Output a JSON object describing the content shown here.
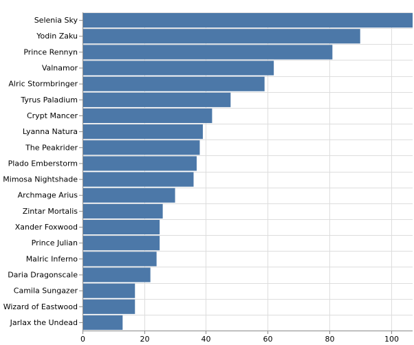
{
  "chart_data": {
    "type": "bar",
    "orientation": "horizontal",
    "title": "",
    "xlabel": "",
    "ylabel": "",
    "xlim": [
      0,
      107
    ],
    "x_ticks": [
      0,
      20,
      40,
      60,
      80,
      100
    ],
    "grid": true,
    "legend": "none",
    "bar_color": "#4c78a8",
    "categories": [
      "Selenia Sky",
      "Yodin Zaku",
      "Prince Rennyn",
      "Valnamor",
      "Alric Stormbringer",
      "Tyrus Paladium",
      "Crypt Mancer",
      "Lyanna Natura",
      "The Peakrider",
      "Plado Emberstorm",
      "Mimosa Nightshade",
      "Archmage Arius",
      "Zintar Mortalis",
      "Xander Foxwood",
      "Prince Julian",
      "Malric Inferno",
      "Daria Dragonscale",
      "Camila Sungazer",
      "Wizard of Eastwood",
      "Jarlax the Undead"
    ],
    "values": [
      107,
      90,
      81,
      62,
      59,
      48,
      42,
      39,
      38,
      37,
      36,
      30,
      26,
      25,
      25,
      24,
      22,
      17,
      17,
      13
    ]
  }
}
